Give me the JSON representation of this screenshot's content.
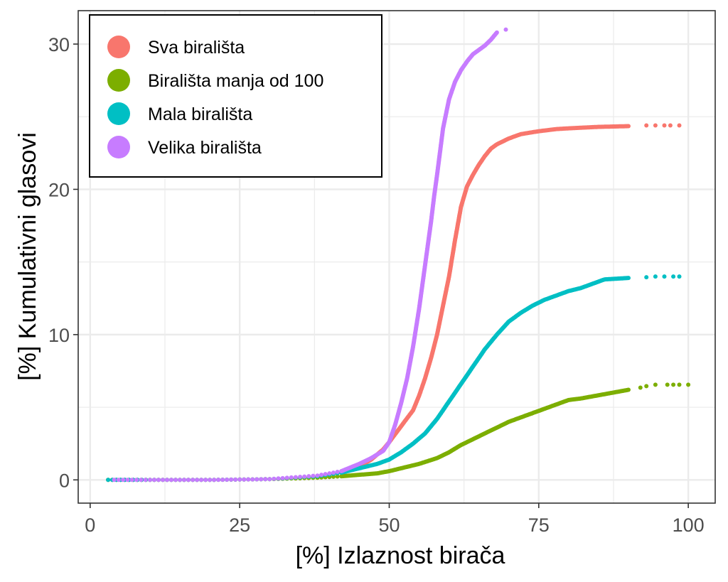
{
  "chart_data": {
    "type": "scatter",
    "title": "",
    "xlabel": "[%] Izlaznost birača",
    "ylabel": "[%] Kumulativni glasovi",
    "xlim": [
      -2,
      104.5
    ],
    "ylim": [
      -1.6,
      32.3
    ],
    "x_ticks": [
      0,
      25,
      50,
      75,
      100
    ],
    "x_tick_labels": [
      "0",
      "25",
      "50",
      "75",
      "100"
    ],
    "y_ticks": [
      0,
      10,
      20,
      30
    ],
    "y_tick_labels": [
      "0",
      "10",
      "20",
      "30"
    ],
    "x_minor_ticks": [
      12.5,
      37.5,
      62.5,
      87.5
    ],
    "y_minor_ticks": [
      5,
      15,
      25
    ],
    "grid": true,
    "legend_position": "top-left",
    "series": [
      {
        "name": "Sva birališta",
        "color": "#F8766D",
        "x": [
          3,
          10,
          20,
          30,
          38,
          42,
          45,
          47,
          49,
          50,
          52,
          54,
          55,
          56,
          57,
          58,
          59,
          60,
          61,
          62,
          63,
          64,
          65,
          66,
          67,
          68,
          70,
          72,
          75,
          78,
          80,
          85,
          90,
          93,
          94.5,
          96,
          97,
          98.5
        ],
        "y": [
          0,
          0,
          0,
          0.05,
          0.2,
          0.5,
          0.9,
          1.4,
          2.1,
          2.6,
          3.7,
          4.8,
          5.8,
          7.0,
          8.4,
          10.0,
          12.0,
          14.0,
          16.5,
          18.8,
          20.2,
          21.0,
          21.7,
          22.3,
          22.8,
          23.1,
          23.5,
          23.8,
          24.0,
          24.15,
          24.2,
          24.3,
          24.35,
          24.4,
          24.4,
          24.4,
          24.4,
          24.4
        ]
      },
      {
        "name": "Birališta manja od 100",
        "color": "#7CAE00",
        "x": [
          3,
          10,
          20,
          30,
          38,
          42,
          45,
          48,
          50,
          52,
          55,
          58,
          60,
          62,
          64,
          66,
          68,
          70,
          72,
          74,
          76,
          78,
          80,
          82,
          84,
          86,
          88,
          90,
          92,
          93,
          94.5,
          96.5,
          97.5,
          98.5,
          100
        ],
        "y": [
          0,
          0,
          0,
          0.05,
          0.15,
          0.25,
          0.35,
          0.45,
          0.6,
          0.8,
          1.1,
          1.5,
          1.9,
          2.4,
          2.8,
          3.2,
          3.6,
          4.0,
          4.3,
          4.6,
          4.9,
          5.2,
          5.5,
          5.6,
          5.75,
          5.9,
          6.05,
          6.2,
          6.35,
          6.45,
          6.55,
          6.55,
          6.55,
          6.55,
          6.55
        ]
      },
      {
        "name": "Mala birališta",
        "color": "#00BFC4",
        "x": [
          3,
          10,
          20,
          30,
          38,
          42,
          45,
          48,
          50,
          52,
          54,
          56,
          58,
          60,
          62,
          64,
          66,
          68,
          70,
          72,
          74,
          76,
          78,
          80,
          82,
          84,
          86,
          88,
          90,
          93,
          94.5,
          96,
          97.5,
          98.5
        ],
        "y": [
          0,
          0,
          0,
          0.05,
          0.25,
          0.5,
          0.8,
          1.1,
          1.4,
          1.9,
          2.5,
          3.2,
          4.2,
          5.4,
          6.6,
          7.8,
          9.0,
          10.0,
          10.9,
          11.5,
          12.0,
          12.4,
          12.7,
          13.0,
          13.2,
          13.5,
          13.8,
          13.85,
          13.9,
          13.95,
          14.0,
          14.0,
          14.0,
          14.0
        ]
      },
      {
        "name": "Velika birališta",
        "color": "#C77CFF",
        "x": [
          4,
          10,
          20,
          30,
          38,
          42,
          45,
          47,
          49,
          50,
          51,
          52,
          53,
          54,
          55,
          56,
          57,
          57.5,
          58,
          58.5,
          59,
          60,
          61,
          62,
          63,
          64,
          65,
          66,
          67,
          68,
          69.5
        ],
        "y": [
          0,
          0,
          0,
          0.05,
          0.3,
          0.6,
          1.1,
          1.5,
          2.0,
          2.6,
          3.8,
          5.3,
          7.0,
          9.2,
          11.8,
          14.8,
          17.8,
          19.5,
          21.0,
          22.6,
          24.2,
          26.2,
          27.4,
          28.2,
          28.8,
          29.3,
          29.6,
          29.9,
          30.3,
          30.8,
          31.0
        ]
      }
    ]
  }
}
